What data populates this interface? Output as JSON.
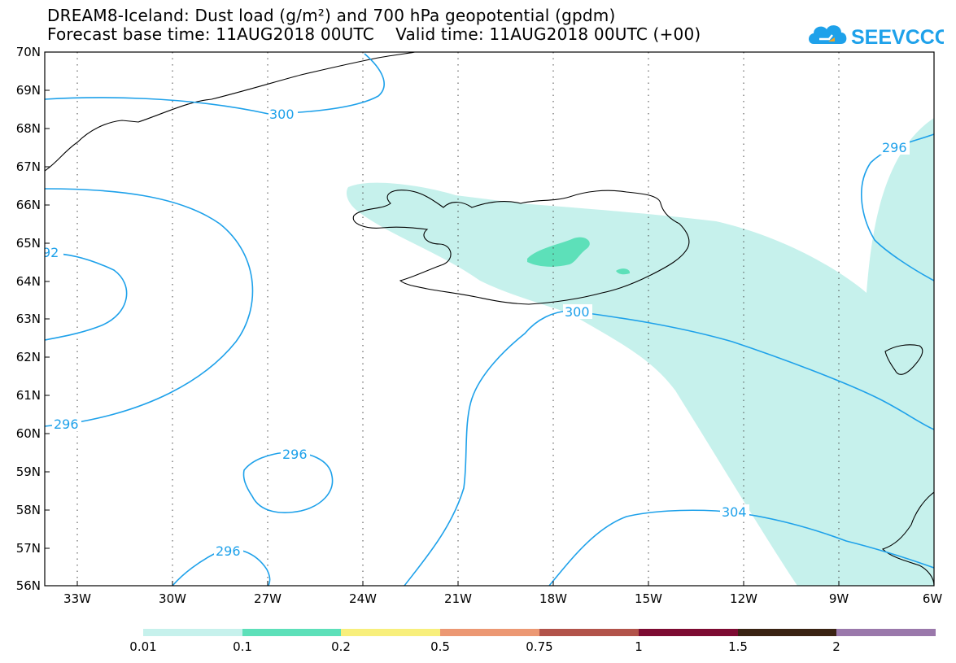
{
  "title": {
    "line1": "DREAM8-Iceland: Dust load (g/m²) and 700 hPa geopotential (gpdm)",
    "line2": "Forecast base time: 11AUG2018 00UTC    Valid time: 11AUG2018 00UTC (+00)"
  },
  "logo": {
    "text": "SEEVCCC",
    "color": "#1ea1ea"
  },
  "map": {
    "lat_labels": [
      "70N",
      "69N",
      "68N",
      "67N",
      "66N",
      "65N",
      "64N",
      "63N",
      "62N",
      "61N",
      "60N",
      "59N",
      "58N",
      "57N",
      "56N"
    ],
    "lon_labels": [
      "33W",
      "30W",
      "27W",
      "24W",
      "21W",
      "18W",
      "15W",
      "12W",
      "9W",
      "6W"
    ],
    "lat_range": [
      56,
      70
    ],
    "lon_range": [
      -34.3,
      -6
    ]
  },
  "contours": {
    "color": "#1ea1ea",
    "labels": [
      "300",
      "300",
      "296",
      "92",
      "296",
      "296",
      "296",
      "304"
    ]
  },
  "colorbar": {
    "labels": [
      "0.01",
      "0.1",
      "0.2",
      "0.5",
      "0.75",
      "1",
      "1.5",
      "2"
    ],
    "colors": [
      "#c6f1ec",
      "#5de0b9",
      "#f8ef7c",
      "#ec9873",
      "#b2534a",
      "#7d0b32",
      "#3a2313",
      "#9a78ab"
    ]
  }
}
